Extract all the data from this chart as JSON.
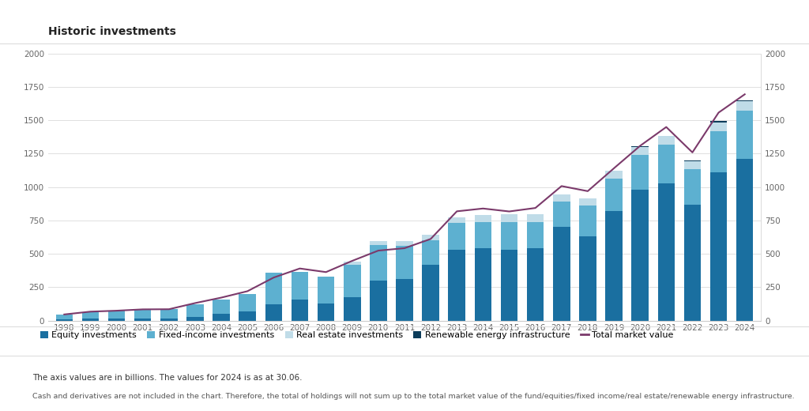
{
  "title": "Historic investments",
  "years": [
    1998,
    1999,
    2000,
    2001,
    2002,
    2003,
    2004,
    2005,
    2006,
    2007,
    2008,
    2009,
    2010,
    2011,
    2012,
    2013,
    2014,
    2015,
    2016,
    2017,
    2018,
    2019,
    2020,
    2021,
    2022,
    2023,
    2024
  ],
  "equity": [
    8,
    15,
    18,
    18,
    18,
    30,
    50,
    70,
    120,
    160,
    130,
    175,
    300,
    310,
    420,
    530,
    540,
    530,
    540,
    700,
    630,
    820,
    980,
    1030,
    870,
    1110,
    1210
  ],
  "fixed_income": [
    35,
    45,
    55,
    65,
    70,
    90,
    110,
    130,
    240,
    205,
    200,
    240,
    265,
    250,
    180,
    200,
    200,
    210,
    200,
    190,
    230,
    240,
    260,
    285,
    265,
    310,
    360
  ],
  "real_estate": [
    0,
    0,
    0,
    0,
    0,
    0,
    0,
    0,
    0,
    0,
    0,
    25,
    30,
    35,
    40,
    45,
    50,
    55,
    55,
    55,
    55,
    60,
    62,
    65,
    60,
    65,
    70
  ],
  "renewable": [
    0,
    0,
    0,
    0,
    0,
    0,
    0,
    0,
    0,
    0,
    0,
    0,
    0,
    0,
    0,
    0,
    0,
    0,
    0,
    0,
    0,
    2,
    3,
    5,
    6,
    8,
    10
  ],
  "total_market_value": [
    46,
    67,
    74,
    84,
    85,
    131,
    172,
    220,
    322,
    390,
    363,
    447,
    524,
    542,
    611,
    818,
    839,
    817,
    843,
    1007,
    969,
    1140,
    1308,
    1449,
    1259,
    1557,
    1694
  ],
  "colors": {
    "equity": "#1a6fa0",
    "fixed_income": "#5db0d0",
    "real_estate": "#c0dce8",
    "renewable": "#0c3c5a",
    "total_market_value": "#7b3a6b"
  },
  "ylim": [
    0,
    2000
  ],
  "yticks": [
    0,
    250,
    500,
    750,
    1000,
    1250,
    1500,
    1750,
    2000
  ],
  "background_color": "#ffffff",
  "grid_color": "#e0e0e0",
  "legend_labels": [
    "Equity investments",
    "Fixed-income investments",
    "Real estate investments",
    "Renewable energy infrastructure",
    "Total market value"
  ],
  "footnote1": "The axis values are in billions. The values for 2024 is as at 30.06.",
  "footnote2": "Cash and derivatives are not included in the chart. Therefore, the total of holdings will not sum up to the total market value of the fund/equities/fixed income/real estate/renewable energy infrastructure."
}
